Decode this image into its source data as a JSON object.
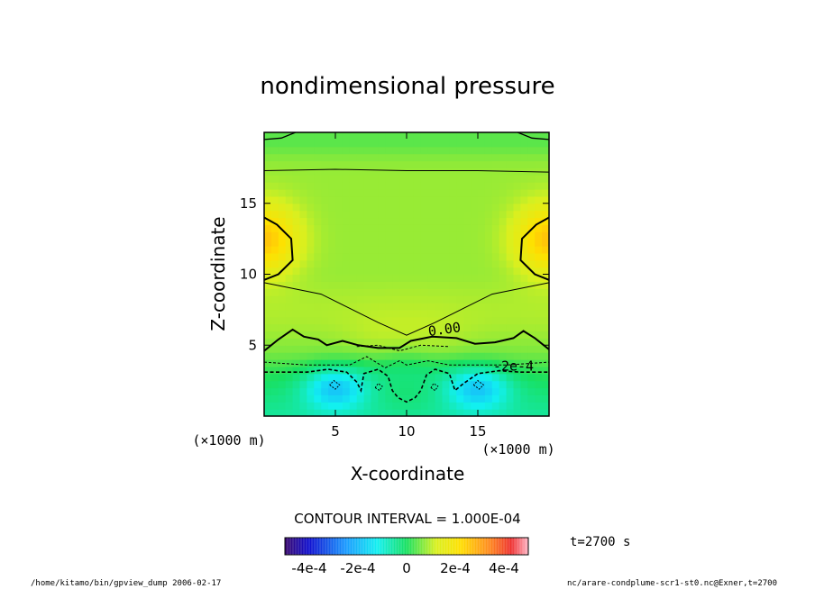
{
  "chart_data": {
    "type": "heatmap",
    "title": "nondimensional pressure",
    "xlabel": "X-coordinate",
    "ylabel": "Z-coordinate",
    "x_unit": "(×1000 m)",
    "y_unit": "(×1000 m)",
    "xlim": [
      0,
      20
    ],
    "ylim": [
      0,
      20
    ],
    "xticks": [
      5,
      10,
      15
    ],
    "yticks": [
      5,
      10,
      15
    ],
    "xtick_labels": [
      "5",
      "10",
      "15"
    ],
    "ytick_labels": [
      "5",
      "10",
      "15"
    ],
    "contour_interval_text": "CONTOUR INTERVAL = 1.000E-04",
    "contour_labels": [
      "0.00",
      "-2e-4"
    ],
    "contour_levels": [
      0.0,
      -0.0001,
      -0.0002,
      0.0001
    ],
    "time_label": "t=2700 s",
    "colorbar": {
      "min": -0.0005,
      "max": 0.0005,
      "tick_values": [
        -0.0004,
        -0.0002,
        0,
        0.0002,
        0.0004
      ],
      "tick_labels": [
        "-4e-4",
        "-2e-4",
        "0",
        "2e-4",
        "4e-4"
      ]
    },
    "field_samples": [
      {
        "x": 0,
        "z": 20,
        "value": 0.0001
      },
      {
        "x": 1,
        "z": 12.5,
        "value": 0.00028
      },
      {
        "x": 19,
        "z": 12.5,
        "value": 0.00028
      },
      {
        "x": 10,
        "z": 15,
        "value": 0.00012
      },
      {
        "x": 10,
        "z": 8,
        "value": 3e-05
      },
      {
        "x": 10,
        "z": 4,
        "value": -0.00015
      },
      {
        "x": 5,
        "z": 2,
        "value": -0.00028
      },
      {
        "x": 15,
        "z": 2,
        "value": -0.00028
      },
      {
        "x": 10,
        "z": 1,
        "value": -0.00018
      }
    ]
  },
  "footer": {
    "left": "/home/kitamo/bin/gpview_dump  2006-02-17",
    "right": "nc/arare-condplume-scr1-st0.nc@Exner,t=2700"
  }
}
